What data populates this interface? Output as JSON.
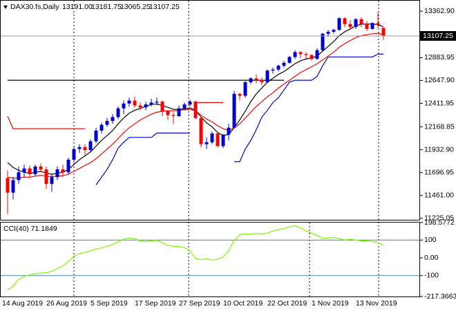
{
  "header": {
    "symbol": "DAX30.fs,Daily",
    "ohlc": [
      "13191.00",
      "13181.75",
      "13065.25",
      "13107.25"
    ]
  },
  "chart_data": [
    {
      "type": "candlestick",
      "categories": [
        "14 Aug 2019",
        null,
        null,
        null,
        null,
        null,
        null,
        null,
        "26 Aug 2019",
        null,
        null,
        null,
        null,
        null,
        null,
        null,
        "5 Sep 2019",
        null,
        null,
        null,
        null,
        null,
        null,
        null,
        "17 Sep 2019",
        null,
        null,
        null,
        null,
        null,
        null,
        null,
        "27 Sep 2019",
        null,
        null,
        null,
        null,
        null,
        null,
        null,
        "10 Oct 2019",
        null,
        null,
        null,
        null,
        null,
        null,
        null,
        "22 Oct 2019",
        null,
        null,
        null,
        null,
        null,
        null,
        null,
        "1 Nov 2019",
        null,
        null,
        null,
        null,
        null,
        null,
        null,
        "13 Nov 2019",
        null,
        null,
        null,
        null
      ],
      "open": [
        11640,
        11490,
        11620,
        11700,
        11740,
        11680,
        11760,
        11730,
        11580,
        11650,
        11730,
        11700,
        11830,
        11940,
        11960,
        11930,
        12020,
        12130,
        12190,
        12230,
        12270,
        12360,
        12410,
        12440,
        12390,
        12370,
        12400,
        12420,
        12430,
        12330,
        12290,
        12280,
        12360,
        12400,
        12430,
        12260,
        11990,
        12010,
        12100,
        11970,
        12090,
        12160,
        12510,
        12490,
        12630,
        12670,
        12650,
        12630,
        12750,
        12760,
        12800,
        12830,
        12890,
        12940,
        12920,
        12910,
        12870,
        12960,
        13130,
        13150,
        13170,
        13290,
        13230,
        13200,
        13280,
        13230,
        13180,
        13240,
        13191.0
      ],
      "high": [
        11720,
        11650,
        11760,
        11780,
        11770,
        11780,
        11790,
        11760,
        11680,
        11760,
        11780,
        11850,
        11960,
        11990,
        11990,
        12040,
        12160,
        12210,
        12260,
        12300,
        12380,
        12440,
        12470,
        12480,
        12420,
        12430,
        12460,
        12470,
        12440,
        12340,
        12320,
        12390,
        12420,
        12450,
        12440,
        12270,
        12060,
        12120,
        12110,
        12090,
        12200,
        12540,
        12520,
        12640,
        12680,
        12710,
        12680,
        12760,
        12780,
        12810,
        12850,
        12900,
        12960,
        12950,
        12940,
        12920,
        12980,
        13140,
        13170,
        13180,
        13300,
        13300,
        13270,
        13290,
        13300,
        13260,
        13250,
        13350,
        13181.75
      ],
      "low": [
        11270,
        11420,
        11580,
        11650,
        11640,
        11660,
        11700,
        11530,
        11500,
        11620,
        11650,
        11680,
        11800,
        11900,
        11880,
        11910,
        12000,
        12100,
        12170,
        12200,
        12250,
        12300,
        12380,
        12370,
        12340,
        12340,
        12380,
        12390,
        12280,
        12240,
        12200,
        12270,
        12340,
        12380,
        12250,
        11960,
        11940,
        11990,
        11960,
        11950,
        12030,
        12150,
        12440,
        12470,
        12610,
        12620,
        12600,
        12620,
        12720,
        12740,
        12780,
        12820,
        12870,
        12880,
        12860,
        12850,
        12860,
        12950,
        13100,
        13130,
        13160,
        13200,
        13180,
        13180,
        13200,
        13160,
        13170,
        13190,
        13065.25
      ],
      "close": [
        11490,
        11620,
        11700,
        11740,
        11680,
        11760,
        11730,
        11580,
        11650,
        11730,
        11700,
        11830,
        11940,
        11960,
        11930,
        12020,
        12130,
        12190,
        12230,
        12270,
        12360,
        12410,
        12440,
        12390,
        12370,
        12400,
        12420,
        12430,
        12330,
        12290,
        12280,
        12360,
        12400,
        12430,
        12260,
        11990,
        12010,
        12100,
        11970,
        12090,
        12160,
        12510,
        12490,
        12630,
        12670,
        12650,
        12630,
        12750,
        12760,
        12800,
        12830,
        12890,
        12940,
        12920,
        12910,
        12870,
        12960,
        13130,
        13150,
        13170,
        13290,
        13230,
        13200,
        13280,
        13230,
        13180,
        13240,
        13220,
        13107.25
      ],
      "up_color": "#0000cd",
      "down_color": "#ff0000",
      "series": [
        {
          "color": "#000000",
          "values": [
            11800,
            11750,
            11720,
            11700,
            11690,
            11700,
            11710,
            11690,
            11680,
            11690,
            11700,
            11730,
            11780,
            11830,
            11870,
            11910,
            11970,
            12030,
            12080,
            12130,
            12200,
            12260,
            12310,
            12340,
            12360,
            12380,
            12400,
            12405,
            12390,
            12370,
            12350,
            12350,
            12355,
            12365,
            12340,
            12270,
            12210,
            12170,
            12110,
            12080,
            12090,
            12160,
            12240,
            12330,
            12430,
            12510,
            12570,
            12630,
            12670,
            12710,
            12740,
            12780,
            12820,
            12850,
            12870,
            12880,
            12900,
            12950,
            13000,
            13050,
            13110,
            13150,
            13180,
            13210,
            13230,
            13230,
            13230,
            13225,
            13200
          ]
        },
        {
          "color": "#ff0000",
          "values": [
            11650,
            11640,
            11640,
            11650,
            11650,
            11660,
            11670,
            11660,
            11655,
            11660,
            11665,
            11680,
            11710,
            11740,
            11770,
            11800,
            11840,
            11890,
            11940,
            11990,
            12050,
            12110,
            12160,
            12200,
            12240,
            12270,
            12300,
            12320,
            12330,
            12335,
            12335,
            12340,
            12345,
            12350,
            12335,
            12290,
            12250,
            12220,
            12180,
            12150,
            12130,
            12160,
            12200,
            12260,
            12320,
            12380,
            12430,
            12480,
            12520,
            12570,
            12610,
            12650,
            12690,
            12730,
            12760,
            12790,
            12820,
            12860,
            12900,
            12940,
            12990,
            13030,
            13060,
            13090,
            13110,
            13120,
            13130,
            13135,
            13120
          ]
        },
        {
          "color": "#e00000",
          "values": [
            12280,
            12150,
            12150,
            12150,
            12150,
            12150,
            12150,
            12150,
            12150,
            12150,
            12150,
            12150,
            12150,
            12150,
            12150,
            null,
            null,
            null,
            null,
            null,
            null,
            null,
            null,
            null,
            null,
            null,
            null,
            null,
            null,
            null,
            null,
            null,
            null,
            null,
            12420,
            12420,
            12420,
            12420,
            12420,
            12420,
            null,
            null,
            null,
            null,
            null,
            null,
            null,
            null,
            null,
            null,
            null,
            null,
            null,
            null,
            null,
            null,
            null,
            null,
            null,
            null,
            null,
            null,
            null,
            null,
            null,
            null,
            null,
            null,
            null
          ]
        },
        {
          "color": "#0000cd",
          "values": [
            null,
            null,
            null,
            null,
            null,
            null,
            null,
            null,
            null,
            null,
            null,
            null,
            null,
            null,
            null,
            null,
            11570,
            11650,
            11730,
            11830,
            11950,
            12010,
            12060,
            12060,
            12060,
            12060,
            12060,
            12105,
            12105,
            12105,
            12105,
            12105,
            12105,
            12105,
            null,
            null,
            null,
            null,
            null,
            null,
            null,
            11810,
            11810,
            11940,
            12030,
            12140,
            12270,
            12340,
            12420,
            12470,
            12550,
            12630,
            12650,
            12650,
            12650,
            12650,
            12690,
            12800,
            12890,
            12890,
            12890,
            12890,
            12890,
            12890,
            12890,
            12890,
            12890,
            12920,
            12920
          ]
        },
        {
          "color": "#000000",
          "values": [
            12650,
            12650,
            12650,
            12650,
            12650,
            12650,
            12650,
            12650,
            12650,
            12650,
            12650,
            12650,
            12650,
            12650,
            12650,
            12650,
            12650,
            12650,
            12650,
            12650,
            12650,
            12650,
            12650,
            12650,
            12650,
            12650,
            12650,
            12650,
            12650,
            12650,
            12650,
            12650,
            12650,
            12650,
            12650,
            12650,
            12650,
            12650,
            12650,
            12650,
            12650,
            12650,
            12650,
            12650,
            12650,
            12650,
            12650,
            12650,
            12650,
            12650,
            12650,
            null,
            null,
            null,
            null,
            null,
            null,
            null,
            null,
            null,
            null,
            null,
            null,
            null,
            null,
            null,
            null,
            null,
            null
          ]
        }
      ],
      "ylim": [
        11210,
        13471
      ],
      "yticks": [
        {
          "value": 13362.9,
          "label": "13362.90"
        },
        12883.95,
        {
          "value": 12647.9,
          "label": "12647.90"
        },
        12411.95,
        12168.85,
        {
          "value": 11932.9,
          "label": "11932.90"
        },
        11696.95,
        {
          "value": 11461,
          "label": "11461.00"
        },
        11225.05
      ]
    },
    {
      "type": "line",
      "title": "CCI(40) 71.1849",
      "color": "#7cfc00",
      "values": [
        -180,
        -160,
        -120,
        -105,
        -95,
        -88,
        -85,
        -84,
        -75,
        -60,
        -45,
        -20,
        10,
        25,
        30,
        40,
        50,
        55,
        65,
        75,
        90,
        105,
        112,
        108,
        95,
        92,
        96,
        98,
        85,
        70,
        65,
        64,
        58,
        40,
        -5,
        -10,
        -5,
        -12,
        -8,
        5,
        40,
        100,
        130,
        135,
        133,
        138,
        135,
        140,
        150,
        160,
        165,
        175,
        180,
        170,
        150,
        140,
        125,
        110,
        112,
        115,
        108,
        100,
        105,
        100,
        95,
        95,
        92,
        85,
        71.1849
      ],
      "levels": [
        100,
        -100
      ],
      "level_color": "#4682b4",
      "ylim": [
        -217.3663,
        198.5772
      ],
      "yticks": [
        198.5772,
        100,
        {
          "value": 0,
          "label": "0.00"
        },
        -100,
        -217.3663
      ]
    }
  ]
}
